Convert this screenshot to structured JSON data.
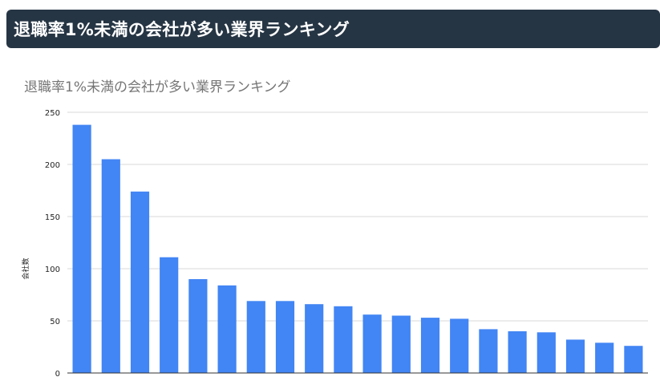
{
  "header": {
    "title": "退職率1%未満の会社が多い業界ランキング"
  },
  "chart_data": {
    "type": "bar",
    "title": "退職率1%未満の会社が多い業界ランキング",
    "ylabel": "会社数",
    "xlabel": "",
    "ylim": [
      0,
      250
    ],
    "yticks": [
      "0",
      "50",
      "100",
      "150",
      "200",
      "250"
    ],
    "grid": true,
    "color": "#4285f4",
    "values": [
      238,
      205,
      174,
      111,
      90,
      84,
      69,
      69,
      66,
      64,
      56,
      55,
      53,
      52,
      42,
      40,
      39,
      32,
      29,
      26
    ]
  }
}
